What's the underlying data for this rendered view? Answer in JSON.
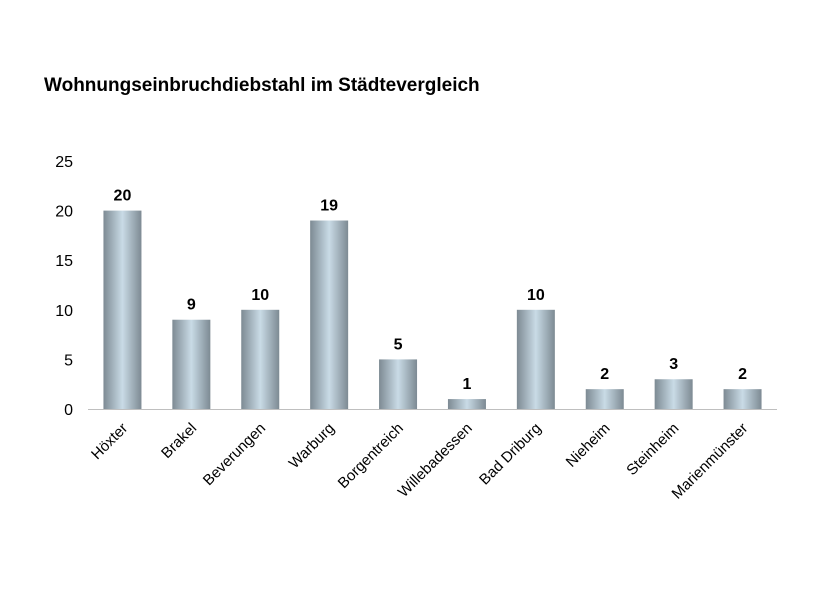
{
  "chart_data": {
    "type": "bar",
    "title": "Wohnungseinbruchdiebstahl im Städtevergleich",
    "xlabel": "",
    "ylabel": "",
    "categories": [
      "Höxter",
      "Brakel",
      "Beverungen",
      "Warburg",
      "Borgentreich",
      "Willebadessen",
      "Bad Driburg",
      "Nieheim",
      "Steinheim",
      "Marienmünster"
    ],
    "values": [
      20,
      9,
      10,
      19,
      5,
      1,
      10,
      2,
      3,
      2
    ],
    "ylim": [
      0,
      25
    ],
    "yticks": [
      "0",
      "5",
      "10",
      "15",
      "20",
      "25"
    ],
    "grid": false,
    "legend": "none",
    "colors": {
      "bar_edge": "#7d8a93",
      "bar_mid": "#c9dbe6",
      "axis": "#bfbfbf"
    }
  }
}
